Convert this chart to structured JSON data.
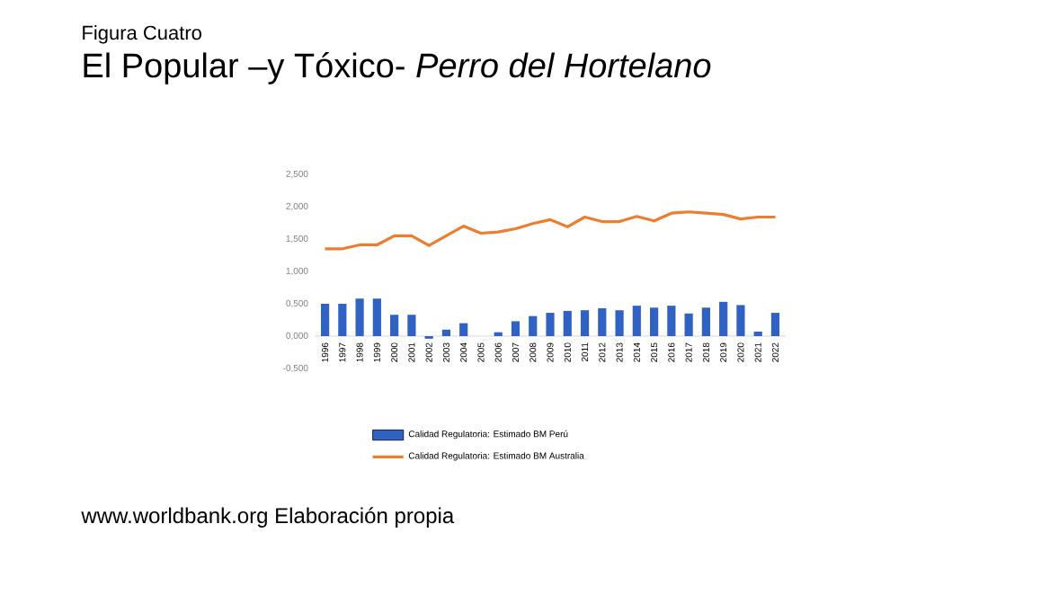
{
  "chart_data": {
    "type": "bar",
    "subtitle": "Figura Cuatro",
    "title": "El Popular –y Tóxico- *Perro del Hortelano*",
    "categories": [
      "1996",
      "1997",
      "1998",
      "1999",
      "2000",
      "2001",
      "2002",
      "2003",
      "2004",
      "2005",
      "2006",
      "2007",
      "2008",
      "2009",
      "2010",
      "2011",
      "2012",
      "2013",
      "2014",
      "2015",
      "2016",
      "2017",
      "2018",
      "2019",
      "2020",
      "2021",
      "2022"
    ],
    "series": [
      {
        "name": "Calidad Regulatoria: Estimado BM Perú",
        "color": "#3062c4",
        "values": [
          0.5,
          0.5,
          0.58,
          0.58,
          0.33,
          0.33,
          -0.04,
          0.1,
          0.2,
          0,
          0.06,
          0.23,
          0.31,
          0.36,
          0.39,
          0.4,
          0.43,
          0.4,
          0.47,
          0.44,
          0.47,
          0.35,
          0.44,
          0.53,
          0.48,
          0.07,
          0.36
        ]
      },
      {
        "name": "Calidad Regulatoria: Estimado BM Australia",
        "type": "line",
        "color": "#ed7d31",
        "values": [
          1.35,
          1.35,
          1.41,
          1.41,
          1.55,
          1.55,
          1.4,
          1.55,
          1.7,
          1.59,
          1.61,
          1.66,
          1.74,
          1.8,
          1.69,
          1.84,
          1.77,
          1.77,
          1.85,
          1.78,
          1.9,
          1.92,
          1.9,
          1.88,
          1.81,
          1.84,
          1.84
        ]
      }
    ],
    "ylim": [
      -0.5,
      2.5
    ],
    "yticks": [
      {
        "value": -0.5,
        "label": "-0,500"
      },
      {
        "value": 0,
        "label": "0,000"
      },
      {
        "value": 0.5,
        "label": "0,500"
      },
      {
        "value": 1,
        "label": "1,000"
      },
      {
        "value": 1.5,
        "label": "1,500"
      },
      {
        "value": 2,
        "label": "2,000"
      },
      {
        "value": 2.5,
        "label": "2,500"
      }
    ],
    "legend": "bottom",
    "annotations": [
      "www.worldbank.org Elaboración propia"
    ]
  }
}
